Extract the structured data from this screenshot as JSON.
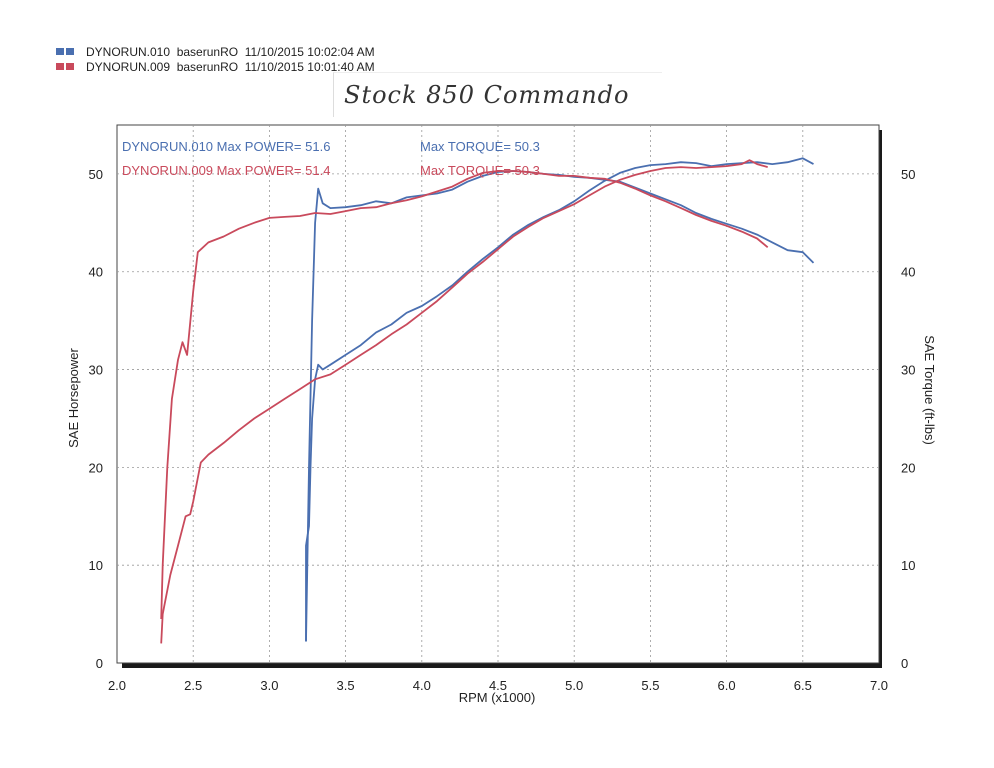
{
  "legend": [
    {
      "run": "DYNORUN.010",
      "name": "baserunRO",
      "date": "11/10/2015",
      "time": "10:02:04 AM",
      "color": "#4a6fb0"
    },
    {
      "run": "DYNORUN.009",
      "name": "baserunRO",
      "date": "11/10/2015",
      "time": "10:01:40 AM",
      "color": "#c94a5c"
    }
  ],
  "note_text": "Stock 850 Commando",
  "annotations": [
    {
      "power_text": "DYNORUN.010  Max POWER= 51.6",
      "torque_text": "Max TORQUE= 50.3",
      "color": "#4a6fb0"
    },
    {
      "power_text": "DYNORUN.009  Max POWER= 51.4",
      "torque_text": "Max TORQUE= 50.3",
      "color": "#c94a5c"
    }
  ],
  "chart_data": {
    "type": "line",
    "xlabel": "RPM (x1000)",
    "ylabel": "SAE Horsepower",
    "y2label": "SAE Torque (ft-lbs)",
    "xlim": [
      2.0,
      7.0
    ],
    "ylim": [
      0,
      55
    ],
    "y2lim": [
      0,
      55
    ],
    "x_ticks": [
      "2.0",
      "2.5",
      "3.0",
      "3.5",
      "4.0",
      "4.5",
      "5.0",
      "5.5",
      "6.0",
      "6.5",
      "7.0"
    ],
    "y_ticks": [
      "0",
      "10",
      "20",
      "30",
      "40",
      "50"
    ],
    "y2_ticks": [
      "0",
      "10",
      "20",
      "30",
      "40",
      "50"
    ],
    "grid": true,
    "series": [
      {
        "name": "DYNORUN.010",
        "quantity": "power",
        "color": "#4a6fb0",
        "points": [
          [
            3.24,
            2.2
          ],
          [
            3.24,
            12
          ],
          [
            3.26,
            14
          ],
          [
            3.27,
            20
          ],
          [
            3.28,
            25
          ],
          [
            3.3,
            29
          ],
          [
            3.32,
            30.5
          ],
          [
            3.35,
            30
          ],
          [
            3.4,
            30.5
          ],
          [
            3.5,
            31.5
          ],
          [
            3.6,
            32.5
          ],
          [
            3.7,
            33.8
          ],
          [
            3.8,
            34.6
          ],
          [
            3.9,
            35.8
          ],
          [
            4.0,
            36.5
          ],
          [
            4.1,
            37.5
          ],
          [
            4.2,
            38.6
          ],
          [
            4.3,
            40
          ],
          [
            4.4,
            41.3
          ],
          [
            4.5,
            42.5
          ],
          [
            4.6,
            43.8
          ],
          [
            4.7,
            44.8
          ],
          [
            4.8,
            45.6
          ],
          [
            4.9,
            46.3
          ],
          [
            5.0,
            47.2
          ],
          [
            5.1,
            48.3
          ],
          [
            5.2,
            49.3
          ],
          [
            5.3,
            50.1
          ],
          [
            5.4,
            50.6
          ],
          [
            5.5,
            50.9
          ],
          [
            5.6,
            51
          ],
          [
            5.7,
            51.2
          ],
          [
            5.8,
            51.1
          ],
          [
            5.9,
            50.8
          ],
          [
            6.0,
            51
          ],
          [
            6.1,
            51.1
          ],
          [
            6.2,
            51.2
          ],
          [
            6.3,
            51
          ],
          [
            6.4,
            51.2
          ],
          [
            6.5,
            51.6
          ],
          [
            6.57,
            51
          ]
        ]
      },
      {
        "name": "DYNORUN.010",
        "quantity": "torque",
        "color": "#4a6fb0",
        "points": [
          [
            3.24,
            2.2
          ],
          [
            3.26,
            20
          ],
          [
            3.28,
            35
          ],
          [
            3.3,
            45
          ],
          [
            3.32,
            48.5
          ],
          [
            3.35,
            47
          ],
          [
            3.4,
            46.5
          ],
          [
            3.5,
            46.6
          ],
          [
            3.6,
            46.8
          ],
          [
            3.7,
            47.2
          ],
          [
            3.8,
            47
          ],
          [
            3.9,
            47.6
          ],
          [
            4.0,
            47.8
          ],
          [
            4.1,
            48
          ],
          [
            4.2,
            48.4
          ],
          [
            4.3,
            49.2
          ],
          [
            4.4,
            49.8
          ],
          [
            4.5,
            50.2
          ],
          [
            4.6,
            50.3
          ],
          [
            4.7,
            50.2
          ],
          [
            4.8,
            50
          ],
          [
            4.9,
            49.9
          ],
          [
            5.0,
            49.7
          ],
          [
            5.1,
            49.6
          ],
          [
            5.2,
            49.4
          ],
          [
            5.3,
            49.2
          ],
          [
            5.4,
            48.6
          ],
          [
            5.5,
            48
          ],
          [
            5.6,
            47.4
          ],
          [
            5.7,
            46.8
          ],
          [
            5.8,
            46
          ],
          [
            5.9,
            45.4
          ],
          [
            6.0,
            44.9
          ],
          [
            6.1,
            44.4
          ],
          [
            6.2,
            43.8
          ],
          [
            6.3,
            43
          ],
          [
            6.4,
            42.2
          ],
          [
            6.5,
            42
          ],
          [
            6.57,
            40.9
          ]
        ]
      },
      {
        "name": "DYNORUN.009",
        "quantity": "power",
        "color": "#c94a5c",
        "points": [
          [
            2.29,
            2
          ],
          [
            2.3,
            5
          ],
          [
            2.35,
            9
          ],
          [
            2.4,
            12
          ],
          [
            2.45,
            15
          ],
          [
            2.48,
            15.2
          ],
          [
            2.5,
            16.5
          ],
          [
            2.55,
            20.5
          ],
          [
            2.6,
            21.3
          ],
          [
            2.7,
            22.5
          ],
          [
            2.8,
            23.8
          ],
          [
            2.9,
            25
          ],
          [
            3.0,
            26
          ],
          [
            3.1,
            27
          ],
          [
            3.2,
            28
          ],
          [
            3.3,
            29
          ],
          [
            3.4,
            29.5
          ],
          [
            3.5,
            30.5
          ],
          [
            3.6,
            31.5
          ],
          [
            3.7,
            32.5
          ],
          [
            3.8,
            33.6
          ],
          [
            3.9,
            34.6
          ],
          [
            4.0,
            35.8
          ],
          [
            4.1,
            37
          ],
          [
            4.2,
            38.4
          ],
          [
            4.3,
            39.8
          ],
          [
            4.4,
            41
          ],
          [
            4.5,
            42.3
          ],
          [
            4.6,
            43.6
          ],
          [
            4.7,
            44.6
          ],
          [
            4.8,
            45.5
          ],
          [
            4.9,
            46.2
          ],
          [
            5.0,
            46.9
          ],
          [
            5.1,
            47.8
          ],
          [
            5.2,
            48.7
          ],
          [
            5.3,
            49.4
          ],
          [
            5.4,
            49.9
          ],
          [
            5.5,
            50.3
          ],
          [
            5.6,
            50.6
          ],
          [
            5.7,
            50.7
          ],
          [
            5.8,
            50.6
          ],
          [
            5.9,
            50.7
          ],
          [
            6.0,
            50.8
          ],
          [
            6.1,
            51
          ],
          [
            6.15,
            51.4
          ],
          [
            6.2,
            51
          ],
          [
            6.27,
            50.7
          ]
        ]
      },
      {
        "name": "DYNORUN.009",
        "quantity": "torque",
        "color": "#c94a5c",
        "points": [
          [
            2.29,
            4.5
          ],
          [
            2.3,
            10
          ],
          [
            2.33,
            20
          ],
          [
            2.36,
            27
          ],
          [
            2.4,
            31
          ],
          [
            2.43,
            32.8
          ],
          [
            2.46,
            31.5
          ],
          [
            2.5,
            38
          ],
          [
            2.53,
            42
          ],
          [
            2.6,
            43
          ],
          [
            2.7,
            43.6
          ],
          [
            2.8,
            44.4
          ],
          [
            2.9,
            45
          ],
          [
            3.0,
            45.5
          ],
          [
            3.1,
            45.6
          ],
          [
            3.2,
            45.7
          ],
          [
            3.3,
            46
          ],
          [
            3.4,
            45.9
          ],
          [
            3.5,
            46.2
          ],
          [
            3.6,
            46.5
          ],
          [
            3.7,
            46.6
          ],
          [
            3.8,
            47
          ],
          [
            3.9,
            47.3
          ],
          [
            4.0,
            47.7
          ],
          [
            4.1,
            48.2
          ],
          [
            4.2,
            48.7
          ],
          [
            4.3,
            49.5
          ],
          [
            4.4,
            50.1
          ],
          [
            4.5,
            50.3
          ],
          [
            4.6,
            50.3
          ],
          [
            4.7,
            50.2
          ],
          [
            4.8,
            50
          ],
          [
            4.9,
            49.8
          ],
          [
            5.0,
            49.8
          ],
          [
            5.1,
            49.6
          ],
          [
            5.2,
            49.5
          ],
          [
            5.3,
            49.1
          ],
          [
            5.4,
            48.5
          ],
          [
            5.5,
            47.8
          ],
          [
            5.6,
            47.2
          ],
          [
            5.7,
            46.5
          ],
          [
            5.8,
            45.8
          ],
          [
            5.9,
            45.2
          ],
          [
            6.0,
            44.7
          ],
          [
            6.1,
            44.1
          ],
          [
            6.2,
            43.4
          ],
          [
            6.27,
            42.5
          ]
        ]
      }
    ]
  }
}
